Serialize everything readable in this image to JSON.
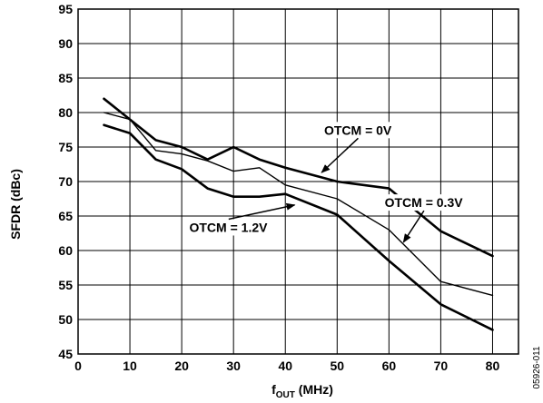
{
  "chart_data": {
    "type": "line",
    "title": "",
    "xlabel_main": "f",
    "xlabel_sub": "OUT",
    "xlabel_unit": " (MHz)",
    "ylabel": "SFDR (dBc)",
    "xlim": [
      0,
      85
    ],
    "ylim": [
      45,
      95
    ],
    "xticks": [
      "0",
      "10",
      "20",
      "30",
      "40",
      "50",
      "60",
      "70",
      "80"
    ],
    "yticks": [
      "45",
      "50",
      "55",
      "60",
      "65",
      "70",
      "75",
      "80",
      "85",
      "90",
      "95"
    ],
    "grid": true,
    "series": [
      {
        "name": "OTCM = 0V",
        "x": [
          5,
          10,
          15,
          20,
          25,
          30,
          35,
          40,
          50,
          60,
          70,
          80
        ],
        "y": [
          82.0,
          79.0,
          76.0,
          75.0,
          73.2,
          75.0,
          73.2,
          72.0,
          70.0,
          69.0,
          62.8,
          59.2
        ]
      },
      {
        "name": "OTCM = 0.3V",
        "x": [
          5,
          10,
          15,
          20,
          25,
          30,
          35,
          40,
          50,
          60,
          70,
          80
        ],
        "y": [
          80.0,
          79.0,
          74.5,
          74.0,
          73.0,
          71.5,
          72.0,
          69.5,
          67.5,
          63.0,
          55.5,
          53.5
        ]
      },
      {
        "name": "OTCM = 1.2V",
        "x": [
          5,
          10,
          15,
          20,
          25,
          30,
          35,
          40,
          50,
          60,
          70,
          80
        ],
        "y": [
          78.2,
          77.0,
          73.2,
          71.8,
          69.0,
          67.8,
          67.8,
          68.2,
          65.2,
          58.5,
          52.2,
          48.5
        ]
      }
    ],
    "annotations": [
      {
        "label": "OTCM = 0V",
        "label_x": 54,
        "label_y": 76.8,
        "arrow_x": 47,
        "arrow_y": 71.3
      },
      {
        "label": "OTCM = 0.3V",
        "label_x": 66.7,
        "label_y": 66.3,
        "arrow_x": 62.8,
        "arrow_y": 61.2
      },
      {
        "label": "OTCM = 1.2V",
        "label_x": 29,
        "label_y": 62.7,
        "arrow_x": 41.8,
        "arrow_y": 66.6
      }
    ],
    "figure_id": "05926-011"
  }
}
